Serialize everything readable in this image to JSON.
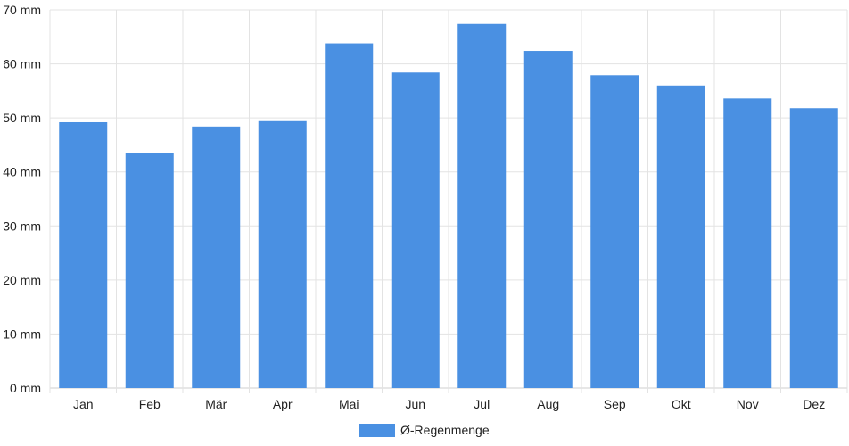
{
  "chart_data": {
    "type": "bar",
    "categories": [
      "Jan",
      "Feb",
      "Mär",
      "Apr",
      "Mai",
      "Jun",
      "Jul",
      "Aug",
      "Sep",
      "Okt",
      "Nov",
      "Dez"
    ],
    "series": [
      {
        "name": "Ø-Regenmenge",
        "color": "#4a90e2",
        "values": [
          49.2,
          43.5,
          48.4,
          49.4,
          63.8,
          58.4,
          67.4,
          62.4,
          57.9,
          56.0,
          53.6,
          51.8
        ]
      }
    ],
    "ylim": [
      0,
      70
    ],
    "yticks": [
      "0 mm",
      "10 mm",
      "20 mm",
      "30 mm",
      "40 mm",
      "50 mm",
      "60 mm",
      "70 mm"
    ],
    "grid": true,
    "legend_position": "bottom-center"
  }
}
